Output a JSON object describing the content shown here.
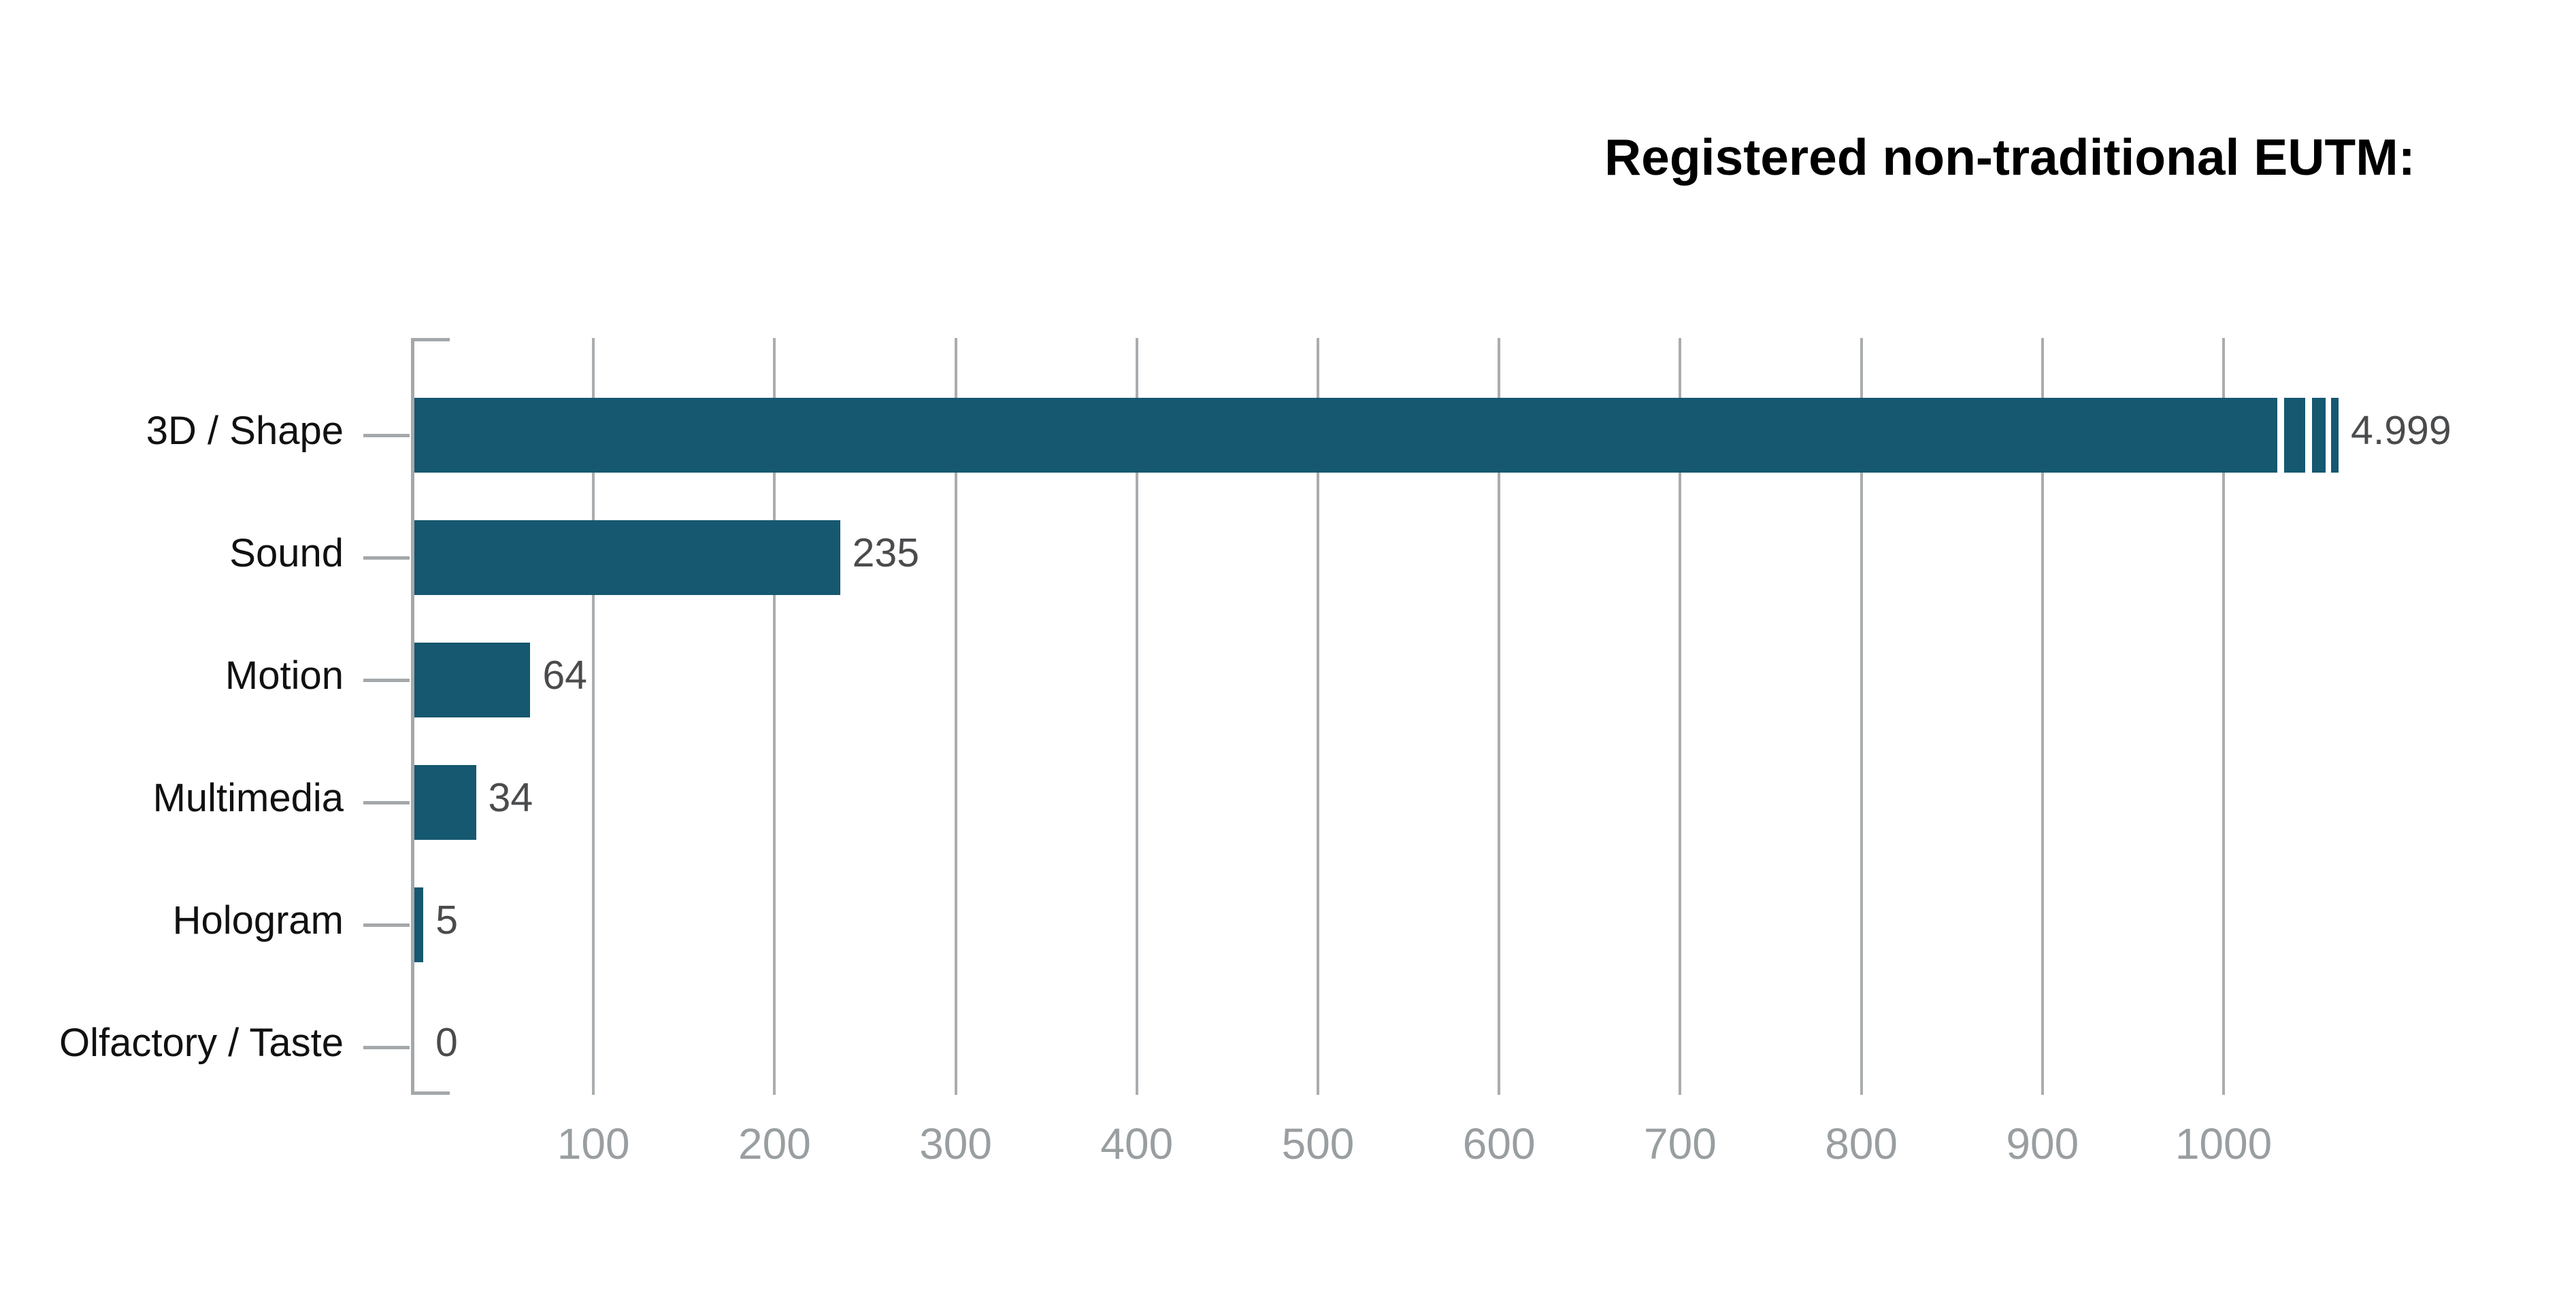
{
  "chart_data": {
    "type": "bar",
    "orientation": "horizontal",
    "title": "Registered non-traditional EUTM:",
    "categories": [
      "3D / Shape",
      "Sound",
      "Motion",
      "Multimedia",
      "Hologram",
      "Olfactory / Taste"
    ],
    "values": [
      4999,
      235,
      64,
      34,
      5,
      0
    ],
    "value_labels": [
      "4.999",
      "235",
      "64",
      "34",
      "5",
      "0"
    ],
    "series": [
      {
        "name": "Registered non-traditional EUTM",
        "values": [
          4999,
          235,
          64,
          34,
          5,
          0
        ]
      }
    ],
    "xlabel": "",
    "ylabel": "",
    "xlim": [
      0,
      1064
    ],
    "x_tick_labels": [
      "100",
      "200",
      "300",
      "400",
      "500",
      "600",
      "700",
      "800",
      "900",
      "1000"
    ],
    "grid": true,
    "legend": "none",
    "truncated_bars": [
      "3D / Shape"
    ],
    "truncation_style": "bar broken with three shrinking slices at right end because value 4.999 exceeds axis maximum"
  },
  "colors": {
    "bar": "#15586f",
    "grid": "#a9adaf",
    "axis": "#a4a8aa",
    "category_label": "#111111",
    "value_label": "#4a4b4d",
    "tick_label": "#999ea1",
    "title": "#000000",
    "background": "#ffffff"
  }
}
